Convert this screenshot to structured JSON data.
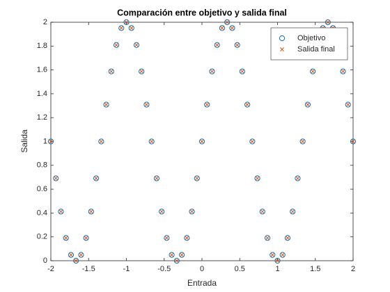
{
  "chart_data": {
    "type": "scatter",
    "title": "Comparación entre objetivo y salida final",
    "xlabel": "Entrada",
    "ylabel": "Salida",
    "x": [
      -2,
      -1.9333,
      -1.8667,
      -1.8,
      -1.7333,
      -1.6667,
      -1.6,
      -1.5333,
      -1.4667,
      -1.4,
      -1.3333,
      -1.2667,
      -1.2,
      -1.1333,
      -1.0667,
      -1,
      -0.9333,
      -0.8667,
      -0.8,
      -0.7333,
      -0.6667,
      -0.6,
      -0.5333,
      -0.4667,
      -0.4,
      -0.3333,
      -0.2667,
      -0.2,
      -0.1333,
      -0.0667,
      0,
      0.0667,
      0.1333,
      0.2,
      0.2667,
      0.3333,
      0.4,
      0.4667,
      0.5333,
      0.6,
      0.6667,
      0.7333,
      0.8,
      0.8667,
      0.9333,
      1,
      1.0667,
      1.1333,
      1.2,
      1.2667,
      1.3333,
      1.4,
      1.4667,
      1.5333,
      1.6,
      1.6667,
      1.7333,
      1.8,
      1.8667,
      1.9333,
      2
    ],
    "series": [
      {
        "name": "Objetivo",
        "color": "#0072bd",
        "marker": "o",
        "values": [
          1,
          0.691,
          0.4122,
          0.191,
          0.0489,
          0,
          0.0489,
          0.191,
          0.4122,
          0.691,
          1,
          1.309,
          1.5878,
          1.809,
          1.9511,
          2,
          1.9511,
          1.809,
          1.5878,
          1.309,
          1,
          0.691,
          0.4122,
          0.191,
          0.0489,
          0,
          0.0489,
          0.191,
          0.4122,
          0.691,
          1,
          1.309,
          1.5878,
          1.809,
          1.9511,
          2,
          1.9511,
          1.809,
          1.5878,
          1.309,
          1,
          0.691,
          0.4122,
          0.191,
          0.0489,
          0,
          0.0489,
          0.191,
          0.4122,
          0.691,
          1,
          1.309,
          1.5878,
          1.809,
          1.9511,
          2,
          1.9511,
          1.809,
          1.5878,
          1.309,
          1
        ]
      },
      {
        "name": "Salida final",
        "color": "#d95319",
        "marker": "x",
        "values": [
          1,
          0.691,
          0.4122,
          0.191,
          0.0489,
          0,
          0.0489,
          0.191,
          0.4122,
          0.691,
          1,
          1.309,
          1.5878,
          1.809,
          1.9511,
          2,
          1.9511,
          1.809,
          1.5878,
          1.309,
          1,
          0.691,
          0.4122,
          0.191,
          0.0489,
          0,
          0.0489,
          0.191,
          0.4122,
          0.691,
          1,
          1.309,
          1.5878,
          1.809,
          1.9511,
          2,
          1.9511,
          1.809,
          1.5878,
          1.309,
          1,
          0.691,
          0.4122,
          0.191,
          0.0489,
          0,
          0.0489,
          0.191,
          0.4122,
          0.691,
          1,
          1.309,
          1.5878,
          1.809,
          1.9511,
          2,
          1.9511,
          1.809,
          1.5878,
          1.309,
          1
        ]
      }
    ],
    "xlim": [
      -2,
      2
    ],
    "xticks": [
      -2,
      -1.5,
      -1,
      -0.5,
      0,
      0.5,
      1,
      1.5,
      2
    ],
    "ylim": [
      0,
      2
    ],
    "yticks": [
      0,
      0.2,
      0.4,
      0.6,
      0.8,
      1,
      1.2,
      1.4,
      1.6,
      1.8,
      2
    ],
    "legend": "top-right"
  }
}
